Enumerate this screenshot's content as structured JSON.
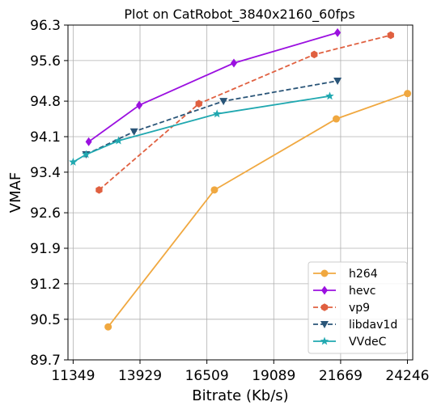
{
  "chart_data": {
    "type": "line",
    "title": "Plot on CatRobot_3840x2160_60fps",
    "xlabel": "Bitrate (Kb/s)",
    "ylabel": "VMAF",
    "xlim": [
      11150,
      24450
    ],
    "ylim": [
      89.7,
      96.3
    ],
    "xticks": [
      11349,
      13929,
      16509,
      19089,
      21669,
      24246
    ],
    "yticks": [
      89.7,
      90.5,
      91.2,
      91.9,
      92.6,
      93.4,
      94.1,
      94.8,
      95.6,
      96.3
    ],
    "xtick_labels": [
      "11349",
      "13929",
      "16509",
      "19089",
      "21669",
      "24246"
    ],
    "ytick_labels": [
      "89.7",
      "90.5",
      "91.2",
      "91.9",
      "92.6",
      "93.4",
      "94.1",
      "94.8",
      "95.6",
      "96.3"
    ],
    "grid": true,
    "legend_position": "bottom-right",
    "series": [
      {
        "name": "h264",
        "color": "#f0a840",
        "marker": "circle",
        "dash": "solid",
        "x": [
          12700,
          16800,
          21500,
          24250
        ],
        "y": [
          90.35,
          93.05,
          94.45,
          94.95
        ]
      },
      {
        "name": "hevc",
        "color": "#9b10e0",
        "marker": "diamond",
        "dash": "solid",
        "x": [
          11950,
          13900,
          17550,
          21550
        ],
        "y": [
          94.0,
          94.72,
          95.55,
          96.15
        ]
      },
      {
        "name": "vp9",
        "color": "#e06040",
        "marker": "hexagon",
        "dash": "dashed",
        "x": [
          12350,
          16200,
          20650,
          23600
        ],
        "y": [
          93.05,
          94.75,
          95.72,
          96.1
        ]
      },
      {
        "name": "libdav1d",
        "color": "#2a5578",
        "marker": "triangle-down",
        "dash": "dashed",
        "x": [
          11850,
          13700,
          17150,
          21550
        ],
        "y": [
          93.75,
          94.2,
          94.8,
          95.2
        ]
      },
      {
        "name": "VVdeC",
        "color": "#20a8b0",
        "marker": "star",
        "dash": "solid",
        "x": [
          11350,
          11850,
          13100,
          16900,
          21250
        ],
        "y": [
          93.6,
          93.75,
          94.02,
          94.55,
          94.9
        ]
      }
    ]
  }
}
